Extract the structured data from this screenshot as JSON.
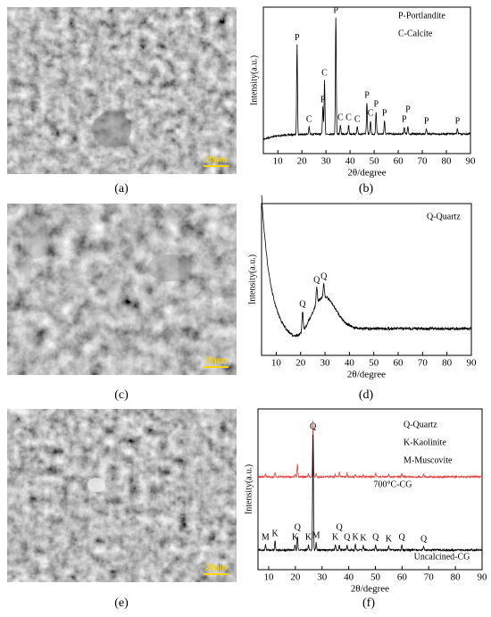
{
  "panel_labels": [
    "(a)",
    "(b)",
    "(c)",
    "(d)",
    "(e)",
    "(f)"
  ],
  "scale_bars": [
    "20μm",
    "20μm",
    "20μm"
  ],
  "chart_data": [
    {
      "type": "line",
      "xlabel": "2θ/degree",
      "ylabel": "Intensity(a.u.)",
      "xlim": [
        4,
        90
      ],
      "xticks": [
        10,
        20,
        30,
        40,
        50,
        60,
        70,
        80,
        90
      ],
      "color": "#000000",
      "legend": [
        "P-Portlandite",
        "C-Calcite"
      ],
      "peaks": [
        {
          "label": "P",
          "x": 18
        },
        {
          "label": "C",
          "x": 23
        },
        {
          "label": "P",
          "x": 28.7
        },
        {
          "label": "C",
          "x": 29.4
        },
        {
          "label": "P",
          "x": 34.1
        },
        {
          "label": "C",
          "x": 36
        },
        {
          "label": "C",
          "x": 39.4
        },
        {
          "label": "C",
          "x": 43
        },
        {
          "label": "P",
          "x": 47
        },
        {
          "label": "C",
          "x": 48.5
        },
        {
          "label": "P",
          "x": 50.8
        },
        {
          "label": "P",
          "x": 54.3
        },
        {
          "label": "P",
          "x": 62.5
        },
        {
          "label": "P",
          "x": 64
        },
        {
          "label": "P",
          "x": 71.7
        },
        {
          "label": "P",
          "x": 84.6
        }
      ]
    },
    {
      "type": "line",
      "xlabel": "2θ/degree",
      "ylabel": "Intensity(a.u.)",
      "xlim": [
        4,
        90
      ],
      "xticks": [
        10,
        20,
        30,
        40,
        50,
        60,
        70,
        80,
        90
      ],
      "color": "#000000",
      "legend": [
        "Q-Quartz"
      ],
      "peaks": [
        {
          "label": "Q",
          "x": 20.8
        },
        {
          "label": "Q",
          "x": 26.6
        },
        {
          "label": "Q",
          "x": 29.5
        }
      ]
    },
    {
      "type": "line",
      "xlabel": "2θ/degree",
      "ylabel": "Intensity(a.u.)",
      "xlim": [
        6,
        90
      ],
      "xticks": [
        10,
        20,
        30,
        40,
        50,
        60,
        70,
        80,
        90
      ],
      "legend": [
        "Q-Quartz",
        "K-Kaolinite",
        "M-Muscovite"
      ],
      "series": [
        {
          "name": "700°C-CG",
          "color": "#e8413c"
        },
        {
          "name": "Uncalcined-CG",
          "color": "#000000"
        }
      ],
      "peaks": [
        {
          "label": "M",
          "x": 8.8
        },
        {
          "label": "K",
          "x": 12.4
        },
        {
          "label": "K",
          "x": 19.9
        },
        {
          "label": "Q",
          "x": 20.8
        },
        {
          "label": "K",
          "x": 24.9
        },
        {
          "label": "Q",
          "x": 26.6
        },
        {
          "label": "M",
          "x": 27.8
        },
        {
          "label": "K",
          "x": 35
        },
        {
          "label": "Q",
          "x": 36.5
        },
        {
          "label": "Q",
          "x": 39.4
        },
        {
          "label": "K",
          "x": 42.5
        },
        {
          "label": "K",
          "x": 45.5
        },
        {
          "label": "Q",
          "x": 50.1
        },
        {
          "label": "K",
          "x": 55
        },
        {
          "label": "Q",
          "x": 59.9
        },
        {
          "label": "Q",
          "x": 68.1
        }
      ]
    }
  ]
}
